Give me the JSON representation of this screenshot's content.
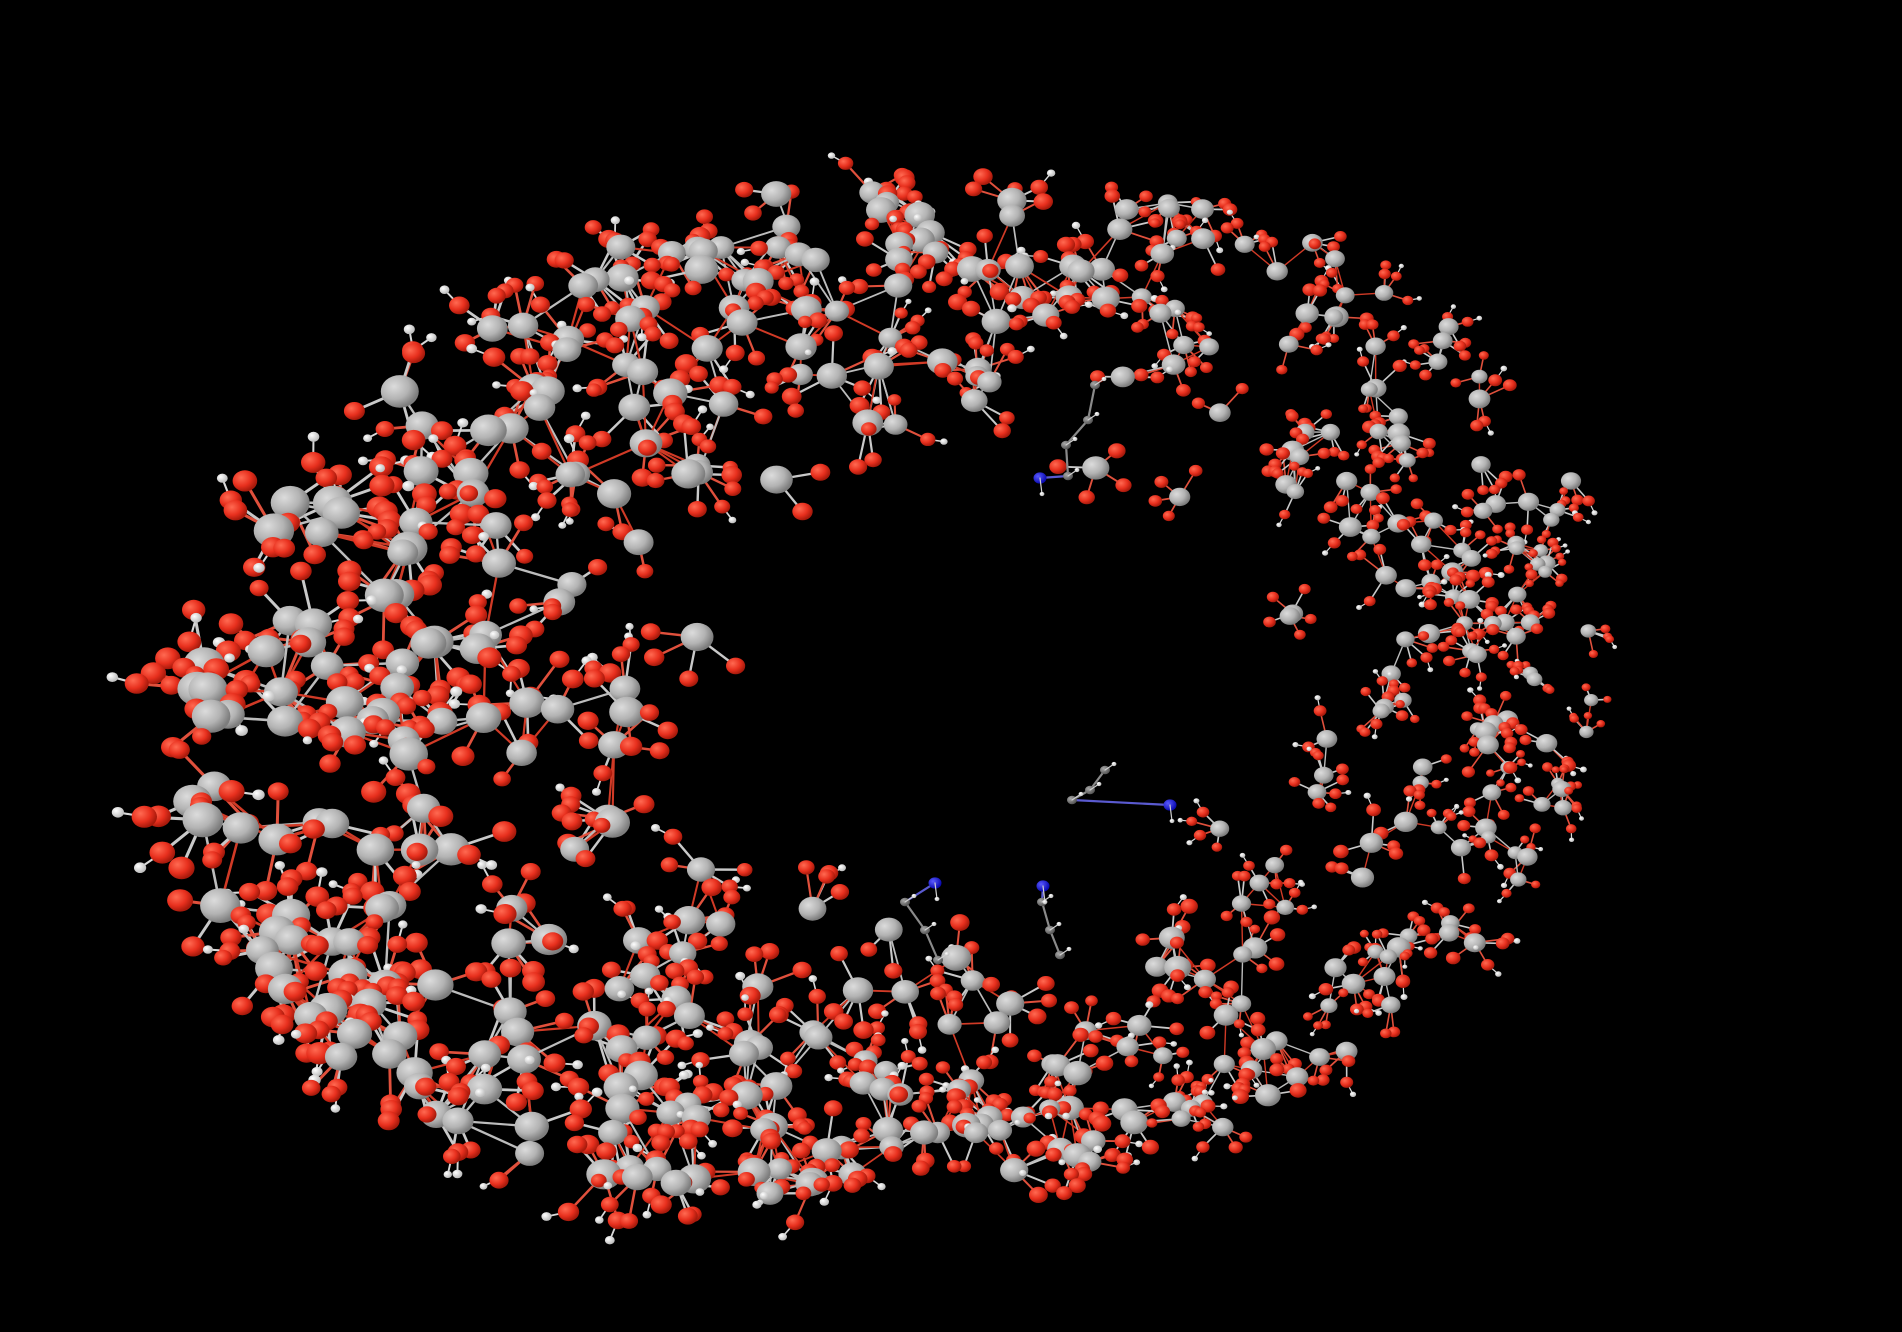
{
  "scene": {
    "subject": "molecular-structure",
    "background_color": "#000000",
    "atom_types": [
      {
        "element": "O",
        "color": "#e8301e"
      },
      {
        "element": "Si",
        "color": "#b3b3b3"
      },
      {
        "element": "H",
        "color": "#eeeeee"
      },
      {
        "element": "N",
        "color": "#1212e6"
      },
      {
        "element": "C",
        "color": "#7a7a7a"
      }
    ],
    "bond_color": "#c8c8c8",
    "ring_shape": "elliptical-pore",
    "organic_groups_count": 4
  }
}
